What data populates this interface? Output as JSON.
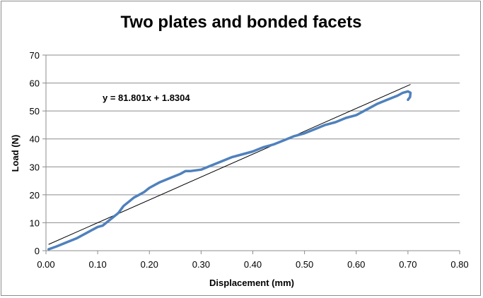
{
  "chart_data": {
    "type": "scatter",
    "title": "Two plates and bonded facets",
    "xlabel": "Displacement (mm)",
    "ylabel": "Load (N)",
    "xlim": [
      0,
      0.8
    ],
    "ylim": [
      0,
      70
    ],
    "x_ticks": [
      "0.00",
      "0.10",
      "0.20",
      "0.30",
      "0.40",
      "0.50",
      "0.60",
      "0.70",
      "0.80"
    ],
    "y_ticks": [
      "0",
      "10",
      "20",
      "30",
      "40",
      "50",
      "60",
      "70"
    ],
    "grid": "horizontal",
    "series": [
      {
        "color": "#4f81bd",
        "x": [
          0.005,
          0.02,
          0.04,
          0.06,
          0.08,
          0.1,
          0.11,
          0.12,
          0.13,
          0.14,
          0.15,
          0.16,
          0.17,
          0.18,
          0.19,
          0.2,
          0.22,
          0.24,
          0.26,
          0.27,
          0.28,
          0.3,
          0.32,
          0.34,
          0.36,
          0.38,
          0.4,
          0.42,
          0.44,
          0.46,
          0.48,
          0.5,
          0.52,
          0.54,
          0.56,
          0.58,
          0.6,
          0.62,
          0.64,
          0.66,
          0.68,
          0.69,
          0.7,
          0.705,
          0.704,
          0.7
        ],
        "y": [
          0.5,
          1.5,
          3,
          4.5,
          6.5,
          8.5,
          9,
          10.5,
          12,
          13.5,
          16,
          17.5,
          19,
          20,
          21,
          22.5,
          24.5,
          26,
          27.5,
          28.5,
          28.5,
          29,
          30.5,
          32,
          33.5,
          34.5,
          35.5,
          37,
          38,
          39.5,
          41,
          42,
          43.5,
          45,
          46,
          47.5,
          48.5,
          50.5,
          52.5,
          54,
          55.5,
          56.5,
          57,
          56.5,
          55,
          54
        ]
      }
    ],
    "trendline": {
      "equation": "y = 81.801x + 1.8304",
      "slope": 81.801,
      "intercept": 1.8304,
      "x_range": [
        0.005,
        0.705
      ],
      "color": "#000000"
    }
  }
}
